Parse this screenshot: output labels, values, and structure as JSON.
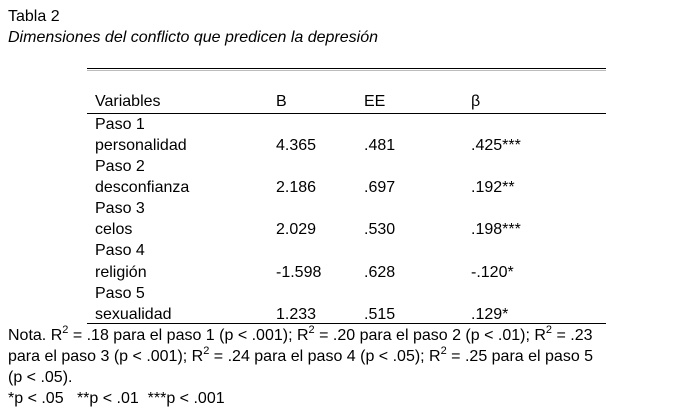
{
  "table": {
    "label": "Tabla 2",
    "title": "Dimensiones del conflicto que predicen la depresión",
    "headers": [
      "Variables",
      "B",
      "EE",
      "β"
    ],
    "rows": [
      {
        "step": "Paso 1",
        "variable": "personalidad",
        "B": "4.365",
        "EE": ".481",
        "beta": ".425***"
      },
      {
        "step": "Paso 2",
        "variable": "desconfianza",
        "B": "2.186",
        "EE": ".697",
        "beta": ".192**"
      },
      {
        "step": "Paso 3",
        "variable": "celos",
        "B": "2.029",
        "EE": ".530",
        "beta": ".198***"
      },
      {
        "step": "Paso 4",
        "variable": "religión",
        "B": "-1.598",
        "EE": ".628",
        "beta": "-.120*"
      },
      {
        "step": "Paso 5",
        "variable": "sexualidad",
        "B": "1.233",
        "EE": ".515",
        "beta": ".129*"
      }
    ]
  },
  "note": {
    "line1": {
      "a": "Nota. R",
      "a_sup": "2",
      "b": " = .18 para el paso 1 (p < .001); R",
      "b_sup": "2",
      "c": " = .20 para el paso 2 (p < .01);  R",
      "c_sup": "2",
      "d": " = .23"
    },
    "line2": {
      "a": "para el paso 3 (p < .001); R",
      "a_sup": "2",
      "b": " = .24 para el paso 4 (p < .05); R",
      "b_sup": "2",
      "c": " = .25 para el paso 5"
    },
    "line3": "(p < .05).",
    "significance": "*p < .05   **p < .01  ***p < .001"
  }
}
